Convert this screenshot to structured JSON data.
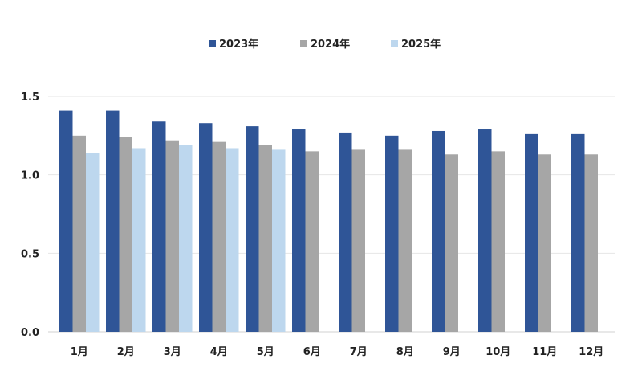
{
  "chart_data": {
    "type": "bar",
    "categories": [
      "1月",
      "2月",
      "3月",
      "4月",
      "5月",
      "6月",
      "7月",
      "8月",
      "9月",
      "10月",
      "11月",
      "12月"
    ],
    "series": [
      {
        "name": "2023年",
        "color": "#2f5597",
        "values": [
          1.41,
          1.41,
          1.34,
          1.33,
          1.31,
          1.29,
          1.27,
          1.25,
          1.28,
          1.29,
          1.26,
          1.26
        ]
      },
      {
        "name": "2024年",
        "color": "#a6a6a6",
        "values": [
          1.25,
          1.24,
          1.22,
          1.21,
          1.19,
          1.15,
          1.16,
          1.16,
          1.13,
          1.15,
          1.13,
          1.13
        ]
      },
      {
        "name": "2025年",
        "color": "#bdd7ee",
        "values": [
          1.14,
          1.17,
          1.19,
          1.17,
          1.16,
          null,
          null,
          null,
          null,
          null,
          null,
          null
        ]
      }
    ],
    "yticks": [
      "0.0",
      "0.5",
      "1.0",
      "1.5"
    ],
    "ylim": [
      0,
      1.5
    ],
    "grid": true,
    "legend_position": "top"
  }
}
